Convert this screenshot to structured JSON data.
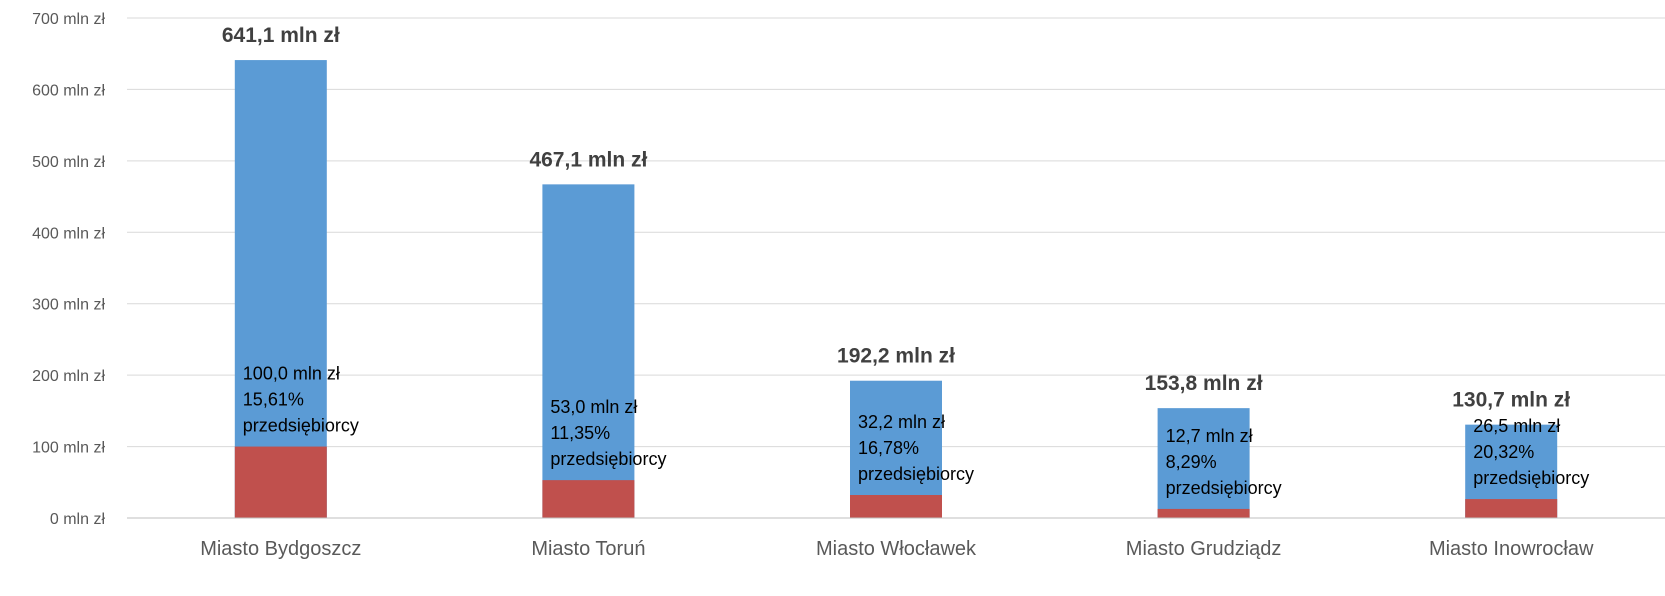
{
  "chart_data": {
    "type": "bar",
    "title": "",
    "xlabel": "",
    "ylabel": "",
    "ylim": [
      0,
      700
    ],
    "y_ticks": [
      0,
      100,
      200,
      300,
      400,
      500,
      600,
      700
    ],
    "y_tick_labels": [
      "0 mln zł",
      "100 mln zł",
      "200 mln zł",
      "300 mln zł",
      "400 mln zł",
      "500 mln zł",
      "600 mln zł",
      "700 mln zł"
    ],
    "grid": true,
    "legend": "none",
    "overlap": true,
    "categories": [
      "Miasto Bydgoszcz",
      "Miasto Toruń",
      "Miasto Włocławek",
      "Miasto Grudziądz",
      "Miasto Inowrocław"
    ],
    "series": [
      {
        "color": "#5b9bd5",
        "values": [
          641.1,
          467.1,
          192.2,
          153.8,
          130.7
        ],
        "labels": [
          "641,1 mln zł",
          "467,1 mln zł",
          "192,2 mln zł",
          "153,8 mln zł",
          "130,7 mln zł"
        ]
      },
      {
        "color": "#c0504d",
        "values": [
          100.0,
          53.0,
          32.2,
          12.7,
          26.5
        ],
        "labels": [
          [
            "100,0 mln zł",
            "15,61%",
            "przedsiębiorcy"
          ],
          [
            "53,0 mln zł",
            "11,35%",
            "przedsiębiorcy"
          ],
          [
            "32,2 mln zł",
            "16,78%",
            "przedsiębiorcy"
          ],
          [
            "12,7 mln zł",
            "8,29%",
            "przedsiębiorcy"
          ],
          [
            "26,5  mln zł",
            "20,32%",
            "przedsiębiorcy"
          ]
        ]
      }
    ]
  }
}
